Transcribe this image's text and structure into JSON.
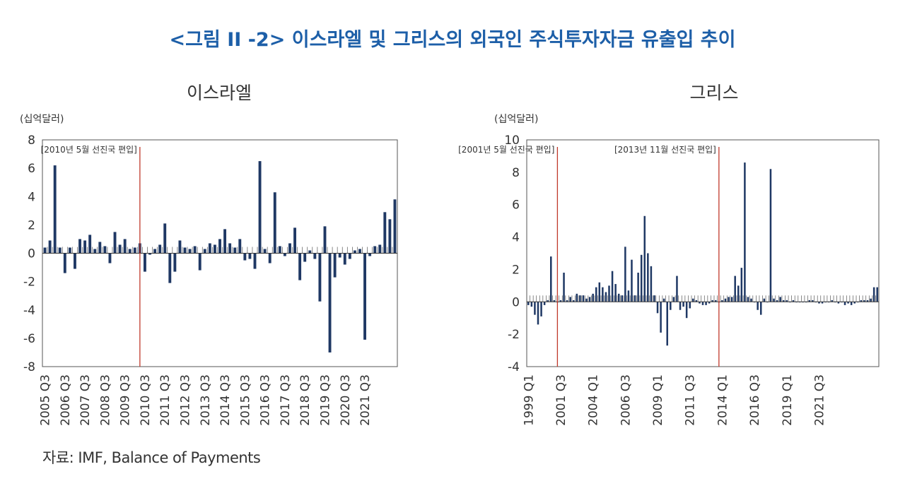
{
  "title": "<그림 II -2> 이스라엘 및 그리스의 외국인 주식투자자금 유출입 추이",
  "source": "자료: IMF, Balance of Payments",
  "colors": {
    "bar": "#1f3864",
    "marker_line": "#c0392b",
    "title": "#1d5fa8"
  },
  "chart_data": [
    {
      "type": "bar",
      "title": "이스라엘",
      "ylabel": "(십억달러)",
      "ylim": [
        -8,
        8
      ],
      "yticks": [
        "8",
        "6",
        "4",
        "2",
        "0",
        "-2",
        "-4",
        "-6",
        "-8"
      ],
      "x_start": "2005 Q3",
      "x_tick_labels": [
        "2005 Q3",
        "2006 Q3",
        "2007 Q3",
        "2008 Q3",
        "2009 Q3",
        "2010 Q3",
        "2011 Q3",
        "2012 Q3",
        "2013 Q3",
        "2014 Q3",
        "2015 Q3",
        "2016 Q3",
        "2017 Q3",
        "2018 Q3",
        "2019 Q3",
        "2020 Q3",
        "2021 Q3"
      ],
      "annotations": [
        {
          "label": "[2010년 5월 선진국 편입]",
          "x": "2010 Q2"
        }
      ],
      "values": [
        0.4,
        0.9,
        6.2,
        0.4,
        -1.4,
        0.4,
        -1.1,
        1.0,
        0.9,
        1.3,
        0.3,
        0.8,
        0.5,
        -0.7,
        1.5,
        0.6,
        1.0,
        0.3,
        0.4,
        0.7,
        -1.3,
        -0.1,
        0.3,
        0.6,
        2.1,
        -2.1,
        -1.3,
        0.9,
        0.4,
        0.3,
        0.5,
        -1.2,
        0.3,
        0.7,
        0.6,
        1.0,
        1.7,
        0.7,
        0.4,
        1.0,
        -0.5,
        -0.4,
        -1.1,
        6.5,
        0.3,
        -0.7,
        4.3,
        0.5,
        -0.2,
        0.7,
        1.8,
        -1.9,
        -0.6,
        0.2,
        -0.4,
        -3.4,
        1.9,
        -7.0,
        -1.7,
        -0.3,
        -0.8,
        -0.4,
        0.2,
        0.3,
        -6.1,
        -0.2,
        0.5,
        0.6,
        2.9,
        2.4,
        3.8
      ]
    },
    {
      "type": "bar",
      "title": "그리스",
      "ylabel": "(십억달러)",
      "ylim": [
        -4,
        10
      ],
      "yticks": [
        "10",
        "8",
        "6",
        "4",
        "2",
        "0",
        "-2",
        "-4"
      ],
      "x_start": "1999 Q1",
      "x_tick_labels": [
        "1999 Q1",
        "2001 Q3",
        "2004 Q1",
        "2006 Q3",
        "2009 Q1",
        "2011 Q3",
        "2014 Q1",
        "2016 Q3",
        "2019 Q1",
        "2021 Q3"
      ],
      "annotations": [
        {
          "label": "[2001년 5월 선진국 편입]",
          "x": "2001 Q2"
        },
        {
          "label": "[2013년 11월 선진국 편입]",
          "x": "2013 Q4"
        }
      ],
      "values": [
        -0.2,
        -0.3,
        -0.8,
        -1.4,
        -0.9,
        -0.2,
        0.1,
        2.8,
        0.1,
        0.0,
        0.1,
        1.8,
        0.1,
        0.3,
        0.1,
        0.5,
        0.4,
        0.4,
        0.2,
        0.3,
        0.5,
        0.9,
        1.2,
        0.9,
        0.6,
        1.0,
        1.9,
        1.1,
        0.5,
        0.4,
        3.4,
        0.7,
        2.6,
        0.4,
        1.8,
        2.9,
        5.3,
        3.0,
        2.2,
        0.4,
        -0.7,
        -1.9,
        0.2,
        -2.7,
        -0.5,
        0.3,
        1.6,
        -0.5,
        -0.3,
        -1.0,
        -0.4,
        0.2,
        0.1,
        -0.1,
        -0.2,
        -0.2,
        -0.1,
        0.1,
        0.1,
        0.0,
        0.1,
        0.2,
        0.3,
        0.3,
        1.6,
        1.0,
        2.1,
        8.6,
        0.3,
        0.2,
        0.0,
        -0.5,
        -0.8,
        0.2,
        0.0,
        8.2,
        0.2,
        0.1,
        0.3,
        0.1,
        0.1,
        0.0,
        0.1,
        0.0,
        0.0,
        0.0,
        0.0,
        0.1,
        0.1,
        0.0,
        -0.1,
        -0.1,
        0.0,
        0.0,
        0.1,
        0.0,
        -0.1,
        0.0,
        -0.2,
        -0.1,
        -0.2,
        -0.1,
        0.0,
        0.1,
        0.1,
        0.1,
        0.2,
        0.9,
        0.9
      ]
    }
  ]
}
